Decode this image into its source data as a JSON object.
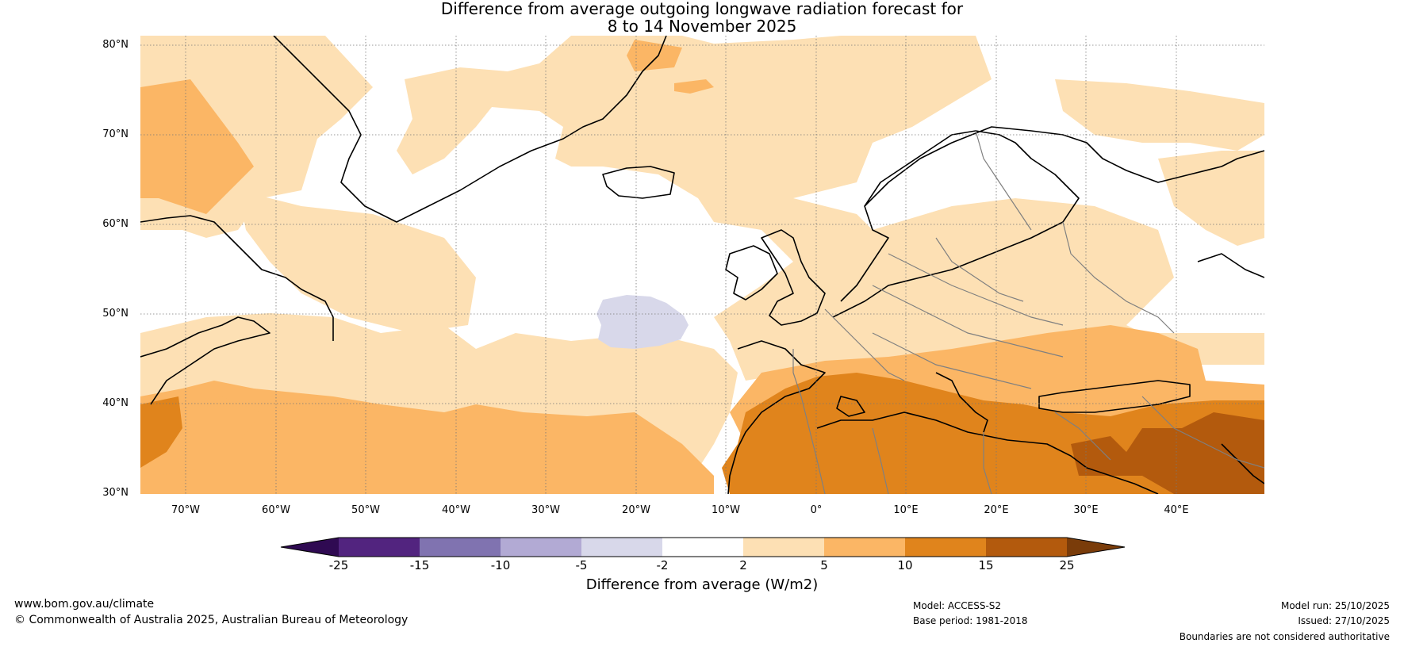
{
  "title": {
    "line1": "Difference from average outgoing longwave radiation forecast for",
    "line2": "8 to 14 November 2025"
  },
  "map": {
    "lat_labels": [
      "80°N",
      "70°N",
      "60°N",
      "50°N",
      "40°N",
      "30°N"
    ],
    "lon_labels": [
      "70°W",
      "60°W",
      "50°W",
      "40°W",
      "30°W",
      "20°W",
      "10°W",
      "0°",
      "10°E",
      "20°E",
      "30°E",
      "40°E"
    ],
    "colors": {
      "pale_orange": "#fde0b4",
      "light_orange": "#fbb665",
      "orange": "#e0841c",
      "dark_orange": "#b35a0d",
      "pale_purple": "#d8d8ea",
      "coast": "#000000",
      "border": "#808080",
      "grid": "#777777"
    }
  },
  "colorbar": {
    "ticks": [
      "-25",
      "-15",
      "-10",
      "-5",
      "-2",
      "2",
      "5",
      "10",
      "15",
      "25"
    ],
    "colors": [
      "#2f0a52",
      "#52247f",
      "#8073b0",
      "#b2aad4",
      "#d8d8ea",
      "#ffffff",
      "#fde0b4",
      "#fbb665",
      "#e0841c",
      "#b35a0d",
      "#7a3c0a"
    ],
    "label": "Difference from average (W/m2)"
  },
  "footer": {
    "website": "www.bom.gov.au/climate",
    "copyright": "© Commonwealth of Australia 2025, Australian Bureau of Meteorology",
    "model": "Model: ACCESS-S2",
    "base_period": "Base period: 1981-2018",
    "model_run": "Model run: 25/10/2025",
    "issued": "Issued: 27/10/2025",
    "disclaimer": "Boundaries are not considered authoritative"
  }
}
